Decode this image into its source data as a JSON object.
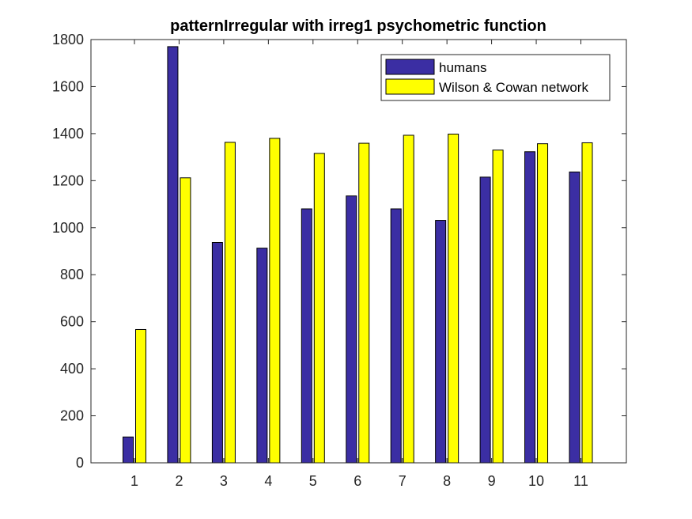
{
  "chart_data": {
    "type": "bar",
    "title": "patternIrregular with irreg1 psychometric function",
    "xlabel": "",
    "ylabel": "",
    "categories": [
      "1",
      "2",
      "3",
      "4",
      "5",
      "6",
      "7",
      "8",
      "9",
      "10",
      "11"
    ],
    "ylim": [
      0,
      1800
    ],
    "yticks": [
      "0",
      "200",
      "400",
      "600",
      "800",
      "1000",
      "1200",
      "1400",
      "1600",
      "1800"
    ],
    "legend_position": "top-right",
    "grid": false,
    "series": [
      {
        "name": "humans",
        "color": "#3b2ea3",
        "values": [
          110,
          1770,
          937,
          913,
          1080,
          1135,
          1080,
          1031,
          1215,
          1323,
          1237
        ]
      },
      {
        "name": "Wilson & Cowan network",
        "color": "#ffff00",
        "values": [
          567,
          1212,
          1363,
          1380,
          1316,
          1359,
          1393,
          1398,
          1330,
          1357,
          1361
        ]
      }
    ]
  }
}
